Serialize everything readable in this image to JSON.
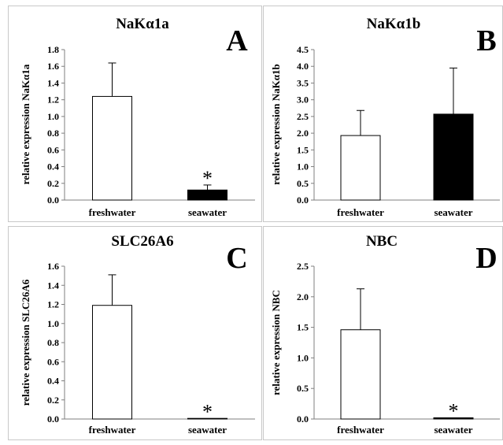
{
  "chart_data": [
    {
      "type": "bar",
      "title": "NaKα1a",
      "panel_letter": "A",
      "ylabel": "relative expression  NaKα1a",
      "categories": [
        "freshwater",
        "seawater"
      ],
      "values": [
        1.24,
        0.12
      ],
      "errors": [
        0.4,
        0.06
      ],
      "bar_colors": [
        "#ffffff",
        "#000000"
      ],
      "significance": [
        "",
        "*"
      ],
      "ylim": [
        0,
        1.8
      ],
      "yticks": [
        "0.0",
        "0.2",
        "0.4",
        "0.6",
        "0.8",
        "1.0",
        "1.2",
        "1.4",
        "1.6",
        "1.8"
      ]
    },
    {
      "type": "bar",
      "title": "NaKα1b",
      "panel_letter": "B",
      "ylabel": "relative expression  NaKα1b",
      "categories": [
        "freshwater",
        "seawater"
      ],
      "values": [
        1.93,
        2.57
      ],
      "errors": [
        0.75,
        1.38
      ],
      "bar_colors": [
        "#ffffff",
        "#000000"
      ],
      "significance": [
        "",
        ""
      ],
      "ylim": [
        0,
        4.5
      ],
      "yticks": [
        "0.0",
        "0.5",
        "1.0",
        "1.5",
        "2.0",
        "2.5",
        "3.0",
        "3.5",
        "4.0",
        "4.5"
      ]
    },
    {
      "type": "bar",
      "title": "SLC26A6",
      "panel_letter": "C",
      "ylabel": "relative expression  SLC26A6",
      "categories": [
        "freshwater",
        "seawater"
      ],
      "values": [
        1.19,
        0.005
      ],
      "errors": [
        0.32,
        0.0
      ],
      "bar_colors": [
        "#ffffff",
        "#000000"
      ],
      "significance": [
        "",
        "*"
      ],
      "ylim": [
        0,
        1.6
      ],
      "yticks": [
        "0.0",
        "0.2",
        "0.4",
        "0.6",
        "0.8",
        "1.0",
        "1.2",
        "1.4",
        "1.6"
      ]
    },
    {
      "type": "bar",
      "title": "NBC",
      "panel_letter": "D",
      "ylabel": "relative expression  NBC",
      "categories": [
        "freshwater",
        "seawater"
      ],
      "values": [
        1.46,
        0.02
      ],
      "errors": [
        0.67,
        0.0
      ],
      "bar_colors": [
        "#ffffff",
        "#000000"
      ],
      "significance": [
        "",
        "*"
      ],
      "ylim": [
        0,
        2.5
      ],
      "yticks": [
        "0.0",
        "0.5",
        "1.0",
        "1.5",
        "2.0",
        "2.5"
      ]
    }
  ]
}
